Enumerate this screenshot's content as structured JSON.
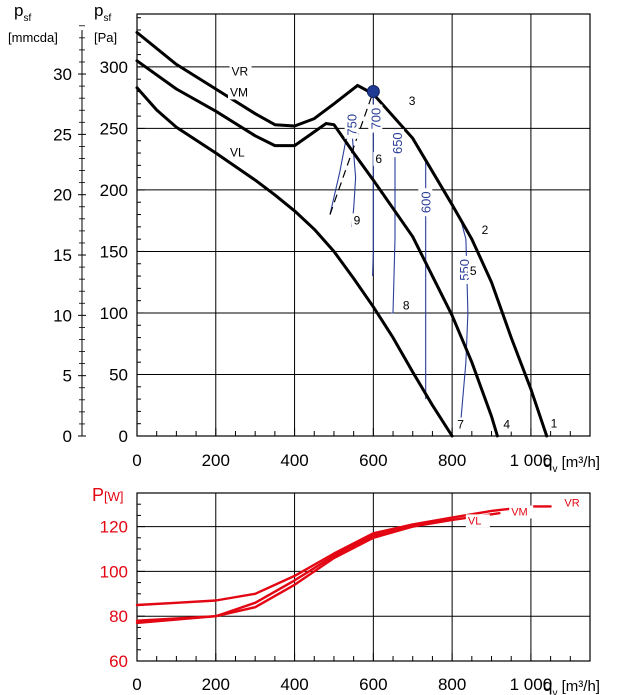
{
  "chart_data": [
    {
      "type": "line",
      "axis_labels": {
        "y_mmcda_symbol": "p",
        "y_mmcda_sub": "sf",
        "y_mmcda_unit": "[mmcda]",
        "y_pa_symbol": "p",
        "y_pa_sub": "sf",
        "y_pa_unit": "[Pa]",
        "x_symbol": "q",
        "x_sub": "v",
        "x_unit": "[m³/h]"
      },
      "xlim": [
        0,
        1150
      ],
      "ylim": [
        0,
        343
      ],
      "x_ticks": [
        {
          "value": 0,
          "label": "0"
        },
        {
          "value": 200,
          "label": "200"
        },
        {
          "value": 400,
          "label": "400"
        },
        {
          "value": 600,
          "label": "600"
        },
        {
          "value": 800,
          "label": "800"
        },
        {
          "value": 1000,
          "label": "1 000"
        }
      ],
      "y_ticks_pa": [
        {
          "value": 0,
          "label": "0"
        },
        {
          "value": 50,
          "label": "50"
        },
        {
          "value": 100,
          "label": "100"
        },
        {
          "value": 150,
          "label": "150"
        },
        {
          "value": 200,
          "label": "200"
        },
        {
          "value": 250,
          "label": "250"
        },
        {
          "value": 300,
          "label": "300"
        }
      ],
      "y_ticks_mmcda": [
        {
          "value": 0,
          "label": "0"
        },
        {
          "value": 5,
          "label": "5"
        },
        {
          "value": 10,
          "label": "10"
        },
        {
          "value": 15,
          "label": "15"
        },
        {
          "value": 20,
          "label": "20"
        },
        {
          "value": 25,
          "label": "25"
        },
        {
          "value": 30,
          "label": "30"
        }
      ],
      "series": [
        {
          "name": "VR",
          "points": [
            [
              0,
              328
            ],
            [
              100,
              302
            ],
            [
              200,
              282
            ],
            [
              300,
              262
            ],
            [
              350,
              253
            ],
            [
              400,
              252
            ],
            [
              450,
              258
            ],
            [
              500,
              270
            ],
            [
              560,
              285
            ],
            [
              600,
              278
            ],
            [
              700,
              242
            ],
            [
              800,
              188
            ],
            [
              850,
              160
            ],
            [
              900,
              125
            ],
            [
              950,
              80
            ],
            [
              1000,
              38
            ],
            [
              1040,
              0
            ]
          ]
        },
        {
          "name": "VM",
          "points": [
            [
              0,
              305
            ],
            [
              100,
              282
            ],
            [
              200,
              264
            ],
            [
              300,
              244
            ],
            [
              350,
              236
            ],
            [
              400,
              236
            ],
            [
              440,
              245
            ],
            [
              480,
              254
            ],
            [
              500,
              253
            ],
            [
              550,
              230
            ],
            [
              600,
              208
            ],
            [
              700,
              162
            ],
            [
              800,
              98
            ],
            [
              850,
              60
            ],
            [
              900,
              16
            ],
            [
              915,
              0
            ]
          ]
        },
        {
          "name": "VL",
          "points": [
            [
              0,
              283
            ],
            [
              50,
              265
            ],
            [
              100,
              251
            ],
            [
              200,
              230
            ],
            [
              300,
              208
            ],
            [
              350,
              196
            ],
            [
              400,
              183
            ],
            [
              450,
              168
            ],
            [
              500,
              150
            ],
            [
              550,
              128
            ],
            [
              600,
              105
            ],
            [
              650,
              80
            ],
            [
              700,
              52
            ],
            [
              750,
              25
            ],
            [
              800,
              0
            ]
          ]
        }
      ],
      "operating_point": [
        600,
        280
      ],
      "dashed_line": [
        [
          490,
          180
        ],
        [
          600,
          280
        ]
      ],
      "curve_labels": [
        {
          "text": "VR",
          "x": 240,
          "y": 293
        },
        {
          "text": "VM",
          "x": 236,
          "y": 276
        },
        {
          "text": "VL",
          "x": 236,
          "y": 227
        },
        {
          "text": "1",
          "x": 1050,
          "y": 7
        },
        {
          "text": "2",
          "x": 875,
          "y": 164
        },
        {
          "text": "3",
          "x": 690,
          "y": 269
        },
        {
          "text": "4",
          "x": 930,
          "y": 6
        },
        {
          "text": "5",
          "x": 845,
          "y": 131
        },
        {
          "text": "6",
          "x": 605,
          "y": 222
        },
        {
          "text": "7",
          "x": 813,
          "y": 6
        },
        {
          "text": "8",
          "x": 675,
          "y": 103
        },
        {
          "text": "9",
          "x": 550,
          "y": 172
        }
      ],
      "sound_curves": [
        {
          "label": "750",
          "label_at": [
            545,
            253
          ],
          "points": [
            [
              490,
              180
            ],
            [
              515,
              215
            ],
            [
              530,
              240
            ],
            [
              545,
              250
            ],
            [
              555,
              210
            ],
            [
              550,
              185
            ],
            [
              545,
              170
            ]
          ]
        },
        {
          "label": "700",
          "label_at": [
            605,
            258
          ],
          "points": [
            [
              600,
              280
            ],
            [
              600,
              150
            ],
            [
              598,
              130
            ]
          ]
        },
        {
          "label": "650",
          "label_at": [
            660,
            238
          ],
          "points": [
            [
              655,
              250
            ],
            [
              655,
              160
            ],
            [
              650,
              100
            ],
            [
              645,
              100
            ]
          ]
        },
        {
          "label": "600",
          "label_at": [
            732,
            190
          ],
          "points": [
            [
              733,
              225
            ],
            [
              733,
              100
            ],
            [
              733,
              30
            ]
          ]
        },
        {
          "label": "550",
          "label_at": [
            830,
            135
          ],
          "points": [
            [
              820,
              178
            ],
            [
              835,
              160
            ],
            [
              840,
              100
            ],
            [
              835,
              60
            ],
            [
              822,
              12
            ]
          ]
        }
      ]
    },
    {
      "type": "line",
      "axis_labels": {
        "y_symbol": "P",
        "y_unit": "[W]",
        "x_symbol": "q",
        "x_sub": "v",
        "x_unit": "[m³/h]"
      },
      "xlim": [
        0,
        1150
      ],
      "ylim": [
        60,
        135
      ],
      "x_ticks": [
        {
          "value": 0,
          "label": "0"
        },
        {
          "value": 200,
          "label": "200"
        },
        {
          "value": 400,
          "label": "400"
        },
        {
          "value": 600,
          "label": "600"
        },
        {
          "value": 800,
          "label": "800"
        },
        {
          "value": 1000,
          "label": "1 000"
        }
      ],
      "y_ticks": [
        {
          "value": 60,
          "label": "60"
        },
        {
          "value": 80,
          "label": "80"
        },
        {
          "value": 100,
          "label": "100"
        },
        {
          "value": 120,
          "label": "120"
        }
      ],
      "series": [
        {
          "name": "VR",
          "points": [
            [
              0,
              85
            ],
            [
              100,
              86
            ],
            [
              200,
              87
            ],
            [
              300,
              90
            ],
            [
              400,
              98
            ],
            [
              500,
              108
            ],
            [
              600,
              117
            ],
            [
              700,
              121
            ],
            [
              800,
              124
            ],
            [
              900,
              127
            ],
            [
              1000,
              129
            ],
            [
              1050,
              129
            ]
          ]
        },
        {
          "name": "VM",
          "points": [
            [
              0,
              78
            ],
            [
              100,
              79
            ],
            [
              200,
              80
            ],
            [
              300,
              86
            ],
            [
              400,
              96
            ],
            [
              500,
              107
            ],
            [
              600,
              116
            ],
            [
              700,
              120
            ],
            [
              800,
              123
            ],
            [
              920,
              126
            ]
          ]
        },
        {
          "name": "VL",
          "points": [
            [
              0,
              77
            ],
            [
              100,
              78.5
            ],
            [
              200,
              80
            ],
            [
              300,
              84
            ],
            [
              400,
              94
            ],
            [
              500,
              106
            ],
            [
              600,
              115
            ],
            [
              700,
              120
            ],
            [
              800,
              124
            ]
          ]
        }
      ],
      "series_labels": [
        {
          "text": "VR",
          "x": 1085,
          "y": 129
        },
        {
          "text": "VM",
          "x": 950,
          "y": 125
        },
        {
          "text": "VL",
          "x": 840,
          "y": 121
        }
      ]
    }
  ]
}
